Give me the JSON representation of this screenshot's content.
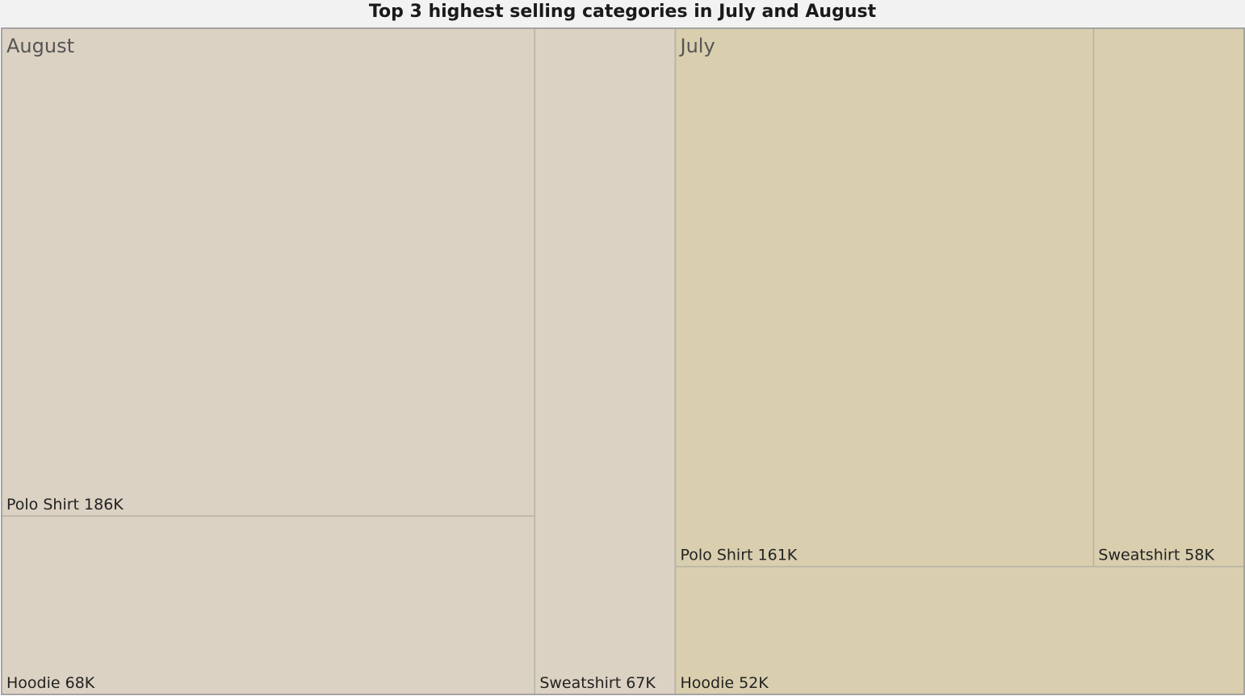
{
  "chart_data": {
    "type": "treemap",
    "title": "Top 3 highest selling categories in July and August",
    "groups": [
      {
        "name": "August",
        "color": "#dcd2c3",
        "items": [
          {
            "category": "Polo Shirt",
            "value": 186,
            "label": "Polo Shirt 186K"
          },
          {
            "category": "Hoodie",
            "value": 68,
            "label": "Hoodie 68K"
          },
          {
            "category": "Sweatshirt",
            "value": 67,
            "label": "Sweatshirt 67K"
          }
        ]
      },
      {
        "name": "July",
        "color": "#d9ceae",
        "items": [
          {
            "category": "Polo Shirt",
            "value": 161,
            "label": "Polo Shirt 161K"
          },
          {
            "category": "Sweatshirt",
            "value": 58,
            "label": "Sweatshirt 58K"
          },
          {
            "category": "Hoodie",
            "value": 52,
            "label": "Hoodie 52K"
          }
        ]
      }
    ],
    "colors": {
      "background": "#ffffff",
      "title_bar": "#f2f2f2",
      "border": "#b8b2a6",
      "outer_border": "#9a9a9a"
    }
  }
}
